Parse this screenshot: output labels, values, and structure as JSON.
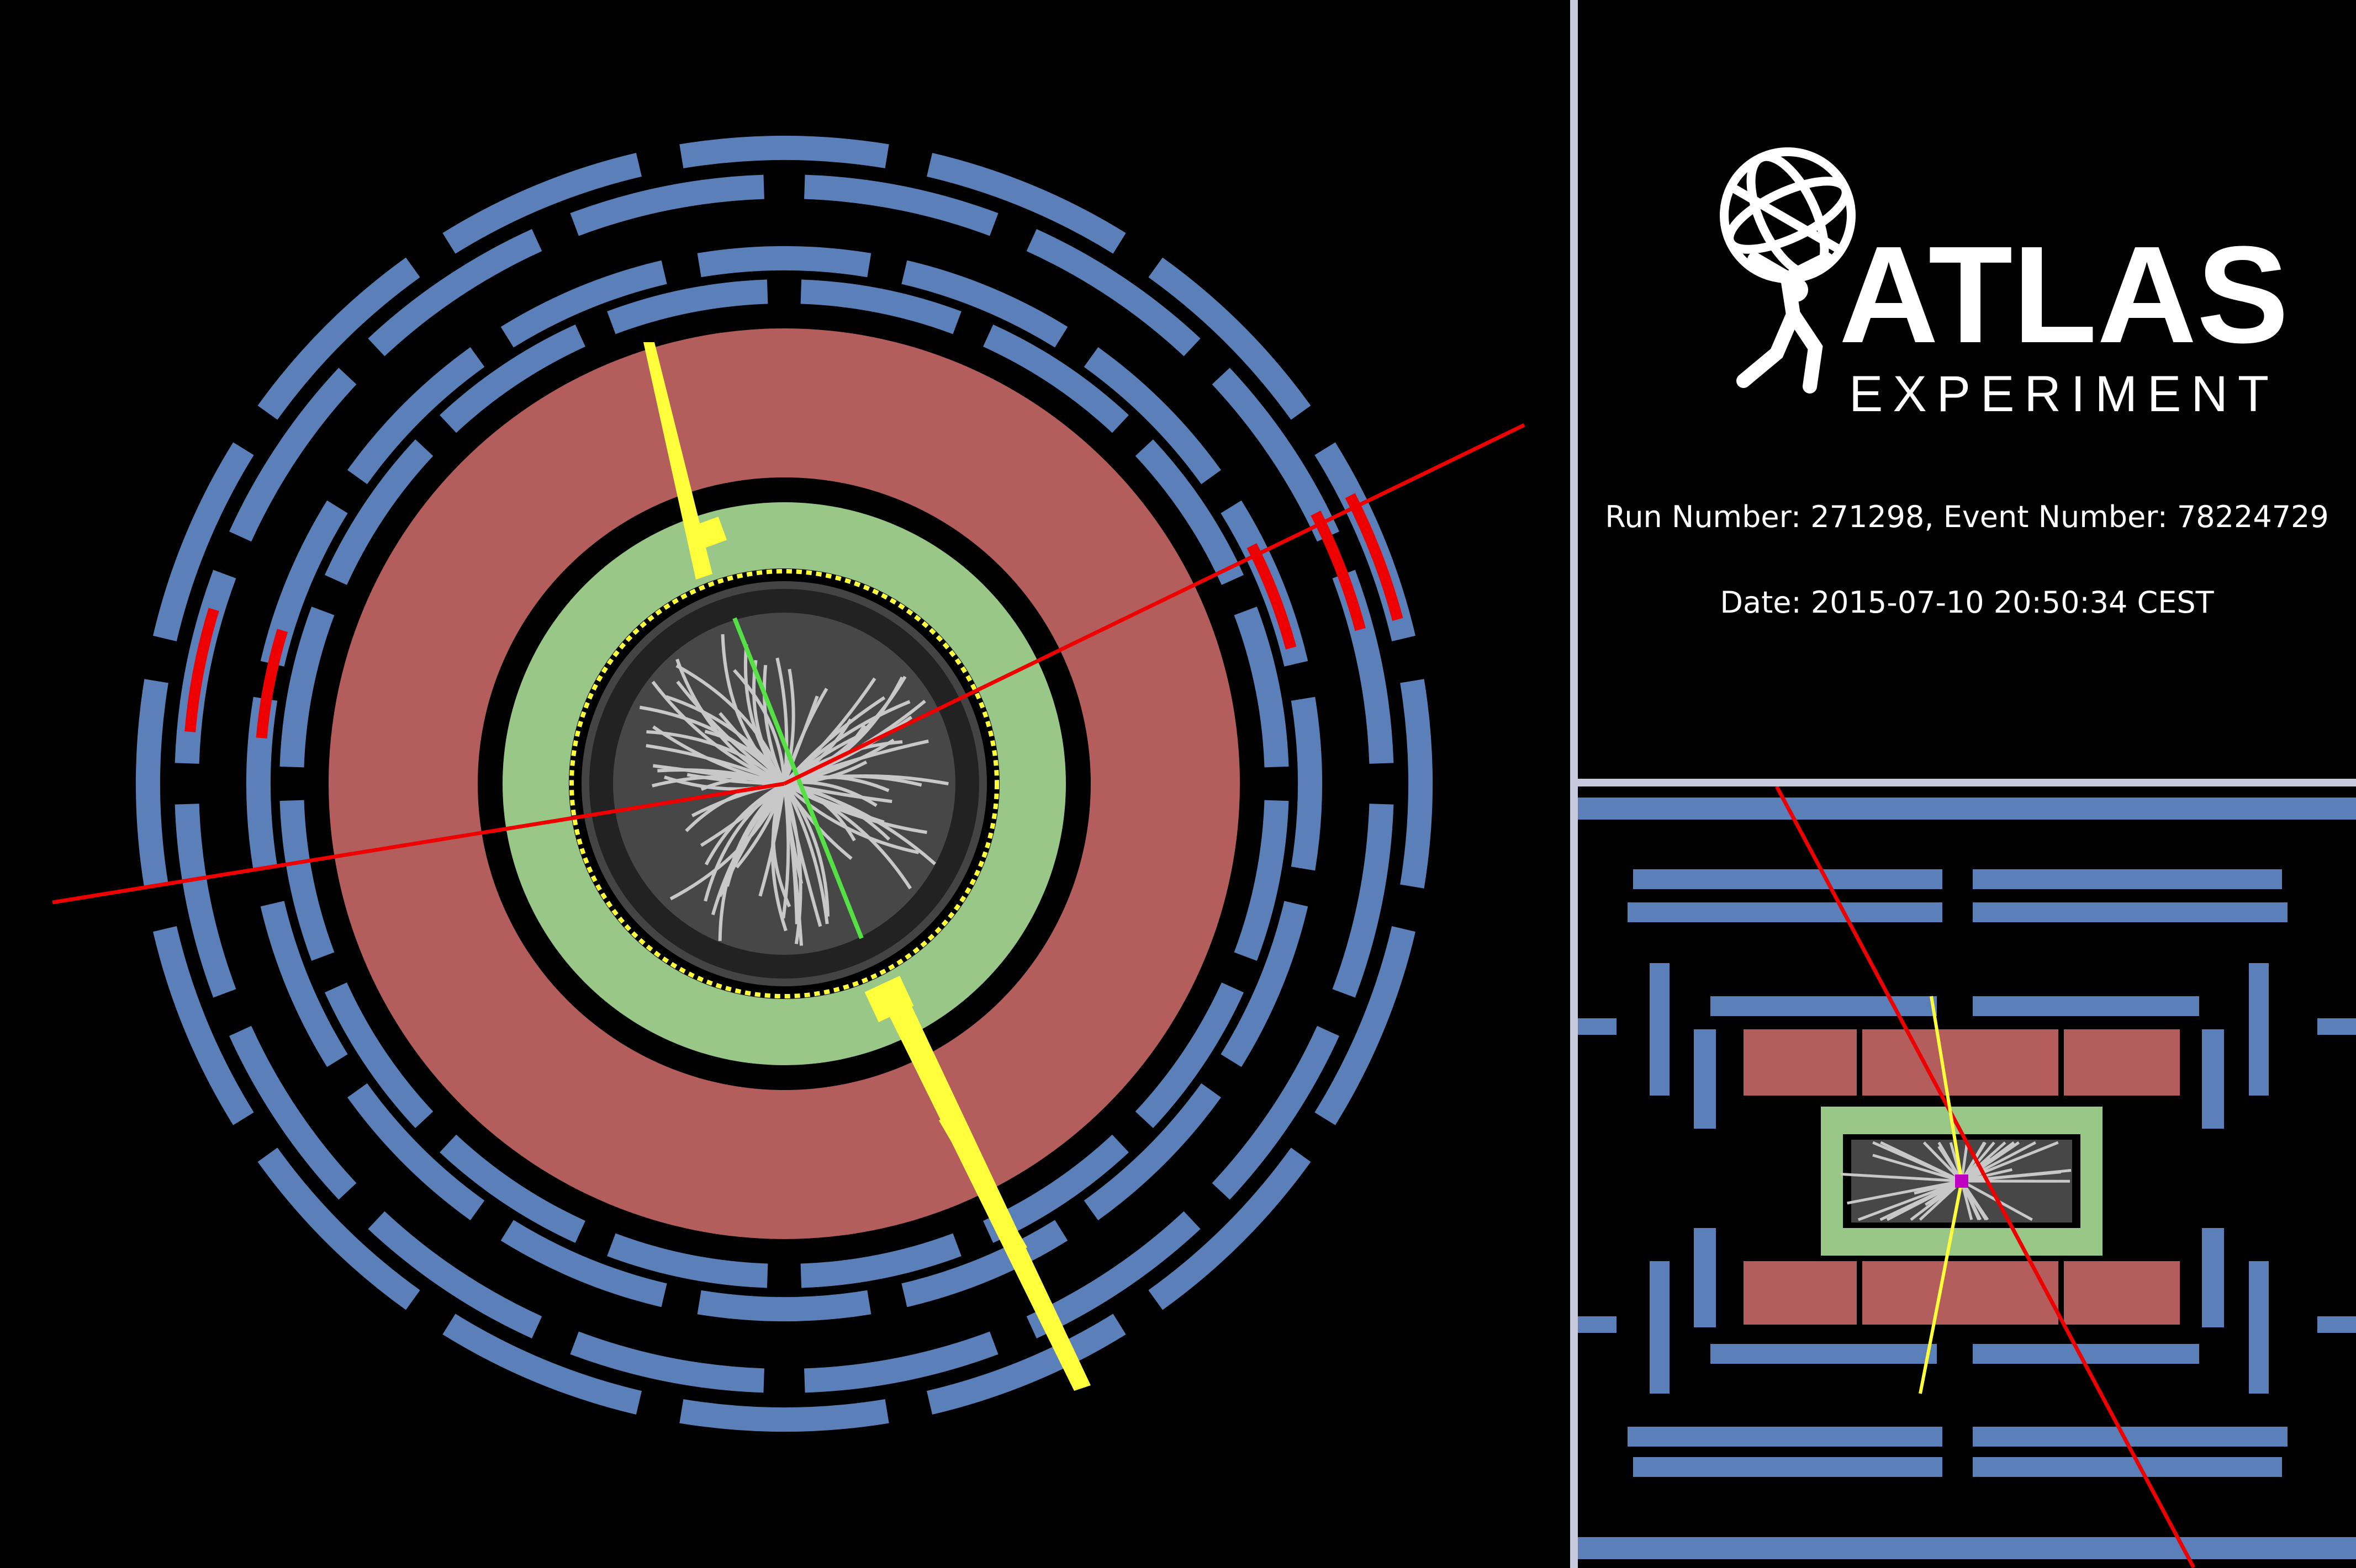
{
  "colors": {
    "background": "#000000",
    "muon_chamber": "#5b80b9",
    "hadronic_calorimeter": "#b35e5c",
    "em_calorimeter": "#99c788",
    "inner_detector": "#474747",
    "track": "#c8c8c8",
    "muon_track": "#ee0000",
    "energy_deposit": "#ffff3c",
    "vertex": "#c000c0",
    "divider": "#c7c9dc"
  },
  "logo": {
    "name": "ATLAS",
    "subtitle": "EXPERIMENT",
    "icon": "atlas-globe-figure-icon"
  },
  "event_info": {
    "run_line": "Run Number: 271298, Event Number: 78224729",
    "date_line": "Date: 2015-07-10 20:50:34 CEST"
  }
}
